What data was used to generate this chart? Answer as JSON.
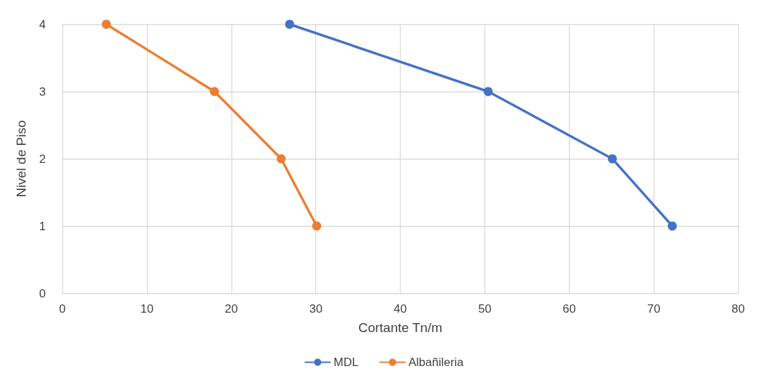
{
  "chart_data": {
    "type": "line",
    "xlabel": "Cortante Tn/m",
    "ylabel": "Nivel de Piso",
    "series": [
      {
        "name": "MDL",
        "color": "#4472c4",
        "x": [
          26.9,
          50.4,
          65.1,
          72.2
        ],
        "values": [
          4,
          3,
          2,
          1
        ]
      },
      {
        "name": "Albañileria",
        "color": "#ed7d31",
        "x": [
          5.2,
          18.0,
          25.9,
          30.1
        ],
        "values": [
          4,
          3,
          2,
          1
        ]
      }
    ],
    "xlim": [
      0,
      80
    ],
    "xticks": [
      0,
      10,
      20,
      30,
      40,
      50,
      60,
      70,
      80
    ],
    "ylim": [
      0,
      4
    ],
    "yticks": [
      0,
      1,
      2,
      3,
      4
    ],
    "grid": true,
    "legend": "bottom",
    "marker": "circle",
    "line_style": "solid"
  }
}
